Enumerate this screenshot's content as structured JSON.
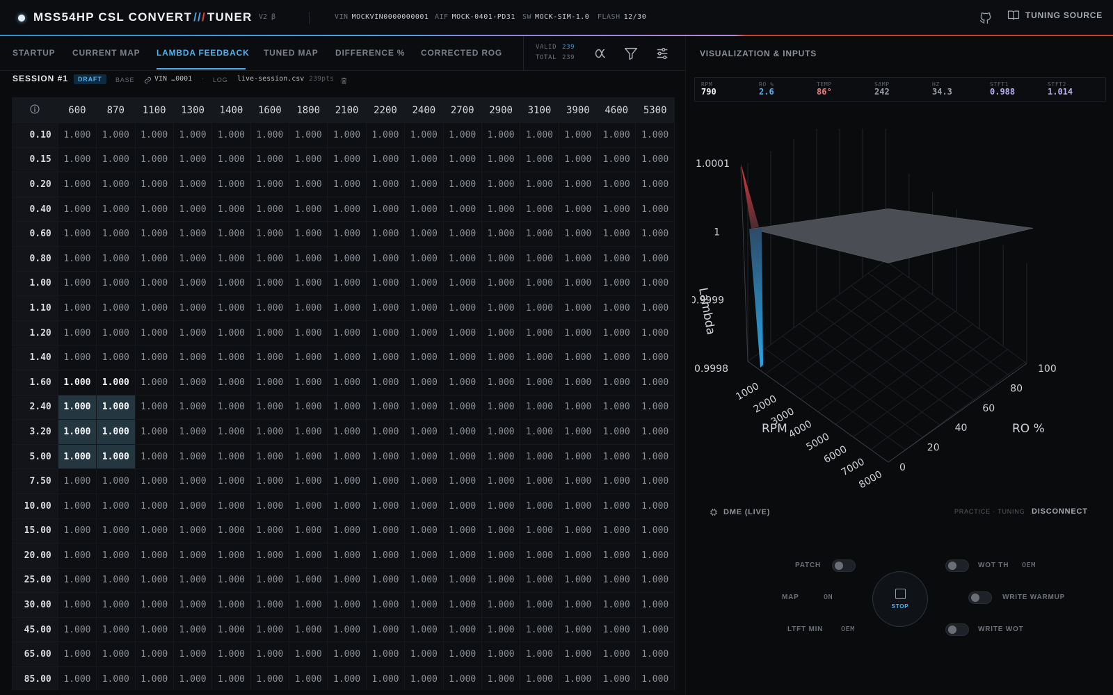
{
  "header": {
    "brand_part1": "MSS54HP CSL CONVERT",
    "brand_slash": "//",
    "brand_slash2": "/",
    "brand_part2": "TUNER",
    "version": "V2 β",
    "vin_label": "VIN",
    "vin_value": "MOCKVIN0000000001",
    "aif_label": "AIF",
    "aif_value": "MOCK-0401-PD31",
    "sw_label": "SW",
    "sw_value": "MOCK-SIM-1.0",
    "flash_label": "FLASH",
    "flash_value": "12/30",
    "source_label": "TUNING SOURCE",
    "github_icon": "github-icon",
    "book_icon": "book-icon"
  },
  "tabs": [
    {
      "label": "STARTUP"
    },
    {
      "label": "CURRENT MAP"
    },
    {
      "label": "LAMBDA FEEDBACK",
      "active": true
    },
    {
      "label": "TUNED MAP"
    },
    {
      "label": "DIFFERENCE %"
    },
    {
      "label": "CORRECTED ROG"
    }
  ],
  "counts": {
    "valid_label": "VALID",
    "valid": "239",
    "total_label": "TOTAL",
    "total": "239"
  },
  "tools": [
    "alpha-icon",
    "filter-icon",
    "sliders-icon"
  ],
  "right_panel_title": "VISUALIZATION & INPUTS",
  "session": {
    "title": "SESSION #1",
    "status": "DRAFT",
    "base_label": "BASE",
    "base_value": "VIN …0001",
    "log_label": "LOG",
    "log_file": "live-session.csv",
    "log_points": "239pts"
  },
  "table": {
    "columns": [
      "600",
      "870",
      "1100",
      "1300",
      "1400",
      "1600",
      "1800",
      "2100",
      "2200",
      "2400",
      "2700",
      "2900",
      "3100",
      "3900",
      "4600",
      "5300"
    ],
    "rows": [
      "0.10",
      "0.15",
      "0.20",
      "0.40",
      "0.60",
      "0.80",
      "1.00",
      "1.10",
      "1.20",
      "1.40",
      "1.60",
      "2.40",
      "3.20",
      "5.00",
      "7.50",
      "10.00",
      "15.00",
      "20.00",
      "25.00",
      "30.00",
      "45.00",
      "65.00",
      "85.00"
    ],
    "cell_value": "1.000",
    "bright_cells": [
      [
        10,
        0
      ],
      [
        10,
        1
      ]
    ],
    "highlight_cells": [
      [
        11,
        0
      ],
      [
        11,
        1
      ],
      [
        12,
        0
      ],
      [
        12,
        1
      ],
      [
        13,
        0
      ],
      [
        13,
        1
      ]
    ]
  },
  "stats": [
    {
      "key": "RPM",
      "value": "790",
      "color": "#eef0f3"
    },
    {
      "key": "RO %",
      "value": "2.6",
      "color": "#4fb2f0"
    },
    {
      "key": "TEMP",
      "value": "86°",
      "color": "#f07a7a"
    },
    {
      "key": "SAMP",
      "value": "242",
      "color": "#9aa0a8"
    },
    {
      "key": "HZ",
      "value": "34.3",
      "color": "#9aa0a8"
    },
    {
      "key": "STFT1",
      "value": "0.988",
      "color": "#b7aef0"
    },
    {
      "key": "STFT2",
      "value": "1.014",
      "color": "#b7aef0"
    }
  ],
  "chart_data": {
    "type": "surface",
    "zlabel": "Lambda",
    "xlabel": "RPM",
    "ylabel": "RO %",
    "z_ticks": [
      "1.0001",
      "1",
      "0.9999",
      "0.9998"
    ],
    "rpm_ticks": [
      "1000",
      "2000",
      "3000",
      "4000",
      "5000",
      "6000",
      "7000",
      "8000"
    ],
    "ro_ticks": [
      "0",
      "20",
      "40",
      "60",
      "80",
      "100"
    ],
    "surface_value": 1.0,
    "spike_max": 1.0001,
    "spike_min": 0.9998
  },
  "controls": {
    "dme_label": "DME (LIVE)",
    "mode_label": "PRACTICE · TUNING",
    "disconnect": "DISCONNECT",
    "patch": "PATCH",
    "map": "MAP",
    "map_value": "ON",
    "ltft": "LTFT MIN",
    "ltft_value": "OEM",
    "wot_th": "WOT TH",
    "wot_th_value": "OEM",
    "write_warmup": "WRITE WARMUP",
    "write_wot": "WRITE WOT",
    "stop": "STOP"
  }
}
